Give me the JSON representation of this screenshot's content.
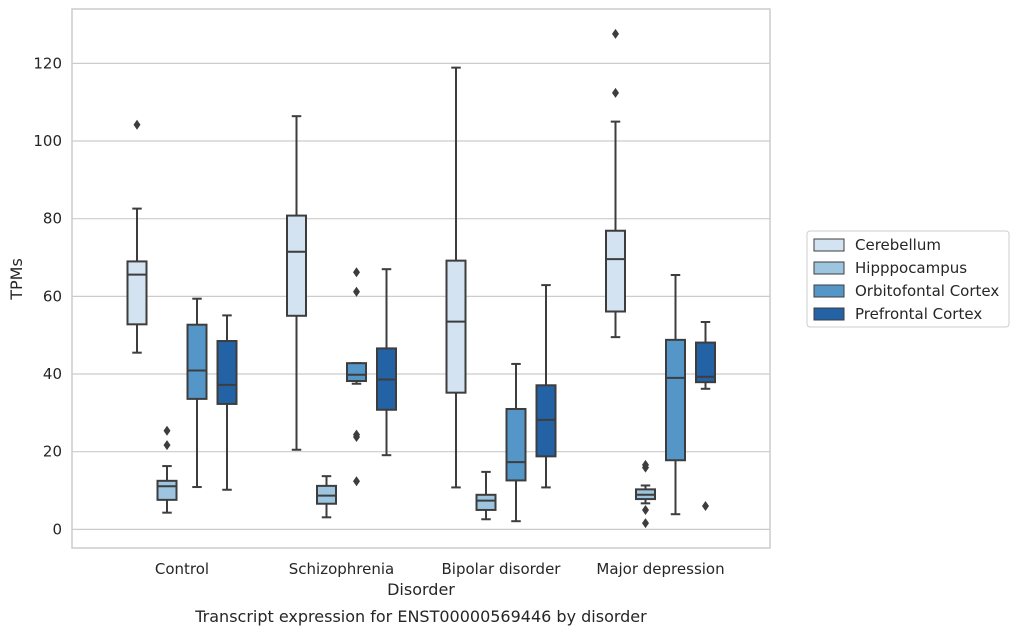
{
  "chart_data": {
    "type": "box",
    "caption": "Transcript expression for ENST00000569446 by disorder",
    "xlabel": "Disorder",
    "ylabel": "TPMs",
    "ylim": [
      -4.8,
      134
    ],
    "yticks": [
      0,
      20,
      40,
      60,
      80,
      100,
      120
    ],
    "grid": true,
    "legend_position": "right",
    "categories": [
      "Control",
      "Schizophrenia",
      "Bipolar disorder",
      "Major depression"
    ],
    "series": [
      {
        "name": "Cerebellum",
        "color": "#d3e3f2",
        "boxes": [
          {
            "whisker_low": 45.5,
            "q1": 52.8,
            "median": 65.6,
            "q3": 69.0,
            "whisker_high": 82.6,
            "outliers": [
              104.2
            ]
          },
          {
            "whisker_low": 20.5,
            "q1": 55.0,
            "median": 71.5,
            "q3": 80.8,
            "whisker_high": 106.4,
            "outliers": []
          },
          {
            "whisker_low": 10.8,
            "q1": 35.2,
            "median": 53.5,
            "q3": 69.2,
            "whisker_high": 118.9,
            "outliers": []
          },
          {
            "whisker_low": 49.5,
            "q1": 56.1,
            "median": 69.6,
            "q3": 76.9,
            "whisker_high": 105.0,
            "outliers": [
              112.4,
              127.6
            ]
          }
        ]
      },
      {
        "name": "Hipppocampus",
        "color": "#9dc5df",
        "boxes": [
          {
            "whisker_low": 4.3,
            "q1": 7.6,
            "median": 11.1,
            "q3": 12.5,
            "whisker_high": 16.3,
            "outliers": [
              21.7,
              25.4
            ]
          },
          {
            "whisker_low": 3.1,
            "q1": 6.6,
            "median": 8.7,
            "q3": 11.2,
            "whisker_high": 13.7,
            "outliers": []
          },
          {
            "whisker_low": 2.6,
            "q1": 5.0,
            "median": 7.4,
            "q3": 8.9,
            "whisker_high": 14.8,
            "outliers": []
          },
          {
            "whisker_low": 6.7,
            "q1": 7.8,
            "median": 8.9,
            "q3": 10.3,
            "whisker_high": 11.3,
            "outliers": [
              1.6,
              5.0,
              15.9,
              16.6
            ]
          }
        ]
      },
      {
        "name": "Orbitofontal Cortex",
        "color": "#5596c8",
        "boxes": [
          {
            "whisker_low": 10.9,
            "q1": 33.6,
            "median": 40.9,
            "q3": 52.7,
            "whisker_high": 59.4,
            "outliers": []
          },
          {
            "whisker_low": 37.5,
            "q1": 38.2,
            "median": 39.8,
            "q3": 42.8,
            "whisker_high": 42.8,
            "outliers": [
              12.4,
              23.8,
              24.4,
              61.2,
              66.2
            ]
          },
          {
            "whisker_low": 2.1,
            "q1": 12.6,
            "median": 17.3,
            "q3": 31.0,
            "whisker_high": 42.6,
            "outliers": []
          },
          {
            "whisker_low": 3.9,
            "q1": 17.8,
            "median": 39.0,
            "q3": 48.8,
            "whisker_high": 65.5,
            "outliers": []
          }
        ]
      },
      {
        "name": "Prefrontal Cortex",
        "color": "#2462a6",
        "boxes": [
          {
            "whisker_low": 10.2,
            "q1": 32.3,
            "median": 37.2,
            "q3": 48.5,
            "whisker_high": 55.1,
            "outliers": []
          },
          {
            "whisker_low": 19.1,
            "q1": 30.8,
            "median": 38.6,
            "q3": 46.6,
            "whisker_high": 67.0,
            "outliers": []
          },
          {
            "whisker_low": 10.8,
            "q1": 18.8,
            "median": 28.2,
            "q3": 37.1,
            "whisker_high": 62.9,
            "outliers": []
          },
          {
            "whisker_low": 36.2,
            "q1": 37.9,
            "median": 39.3,
            "q3": 48.1,
            "whisker_high": 53.4,
            "outliers": [
              6.0
            ]
          }
        ]
      }
    ]
  }
}
